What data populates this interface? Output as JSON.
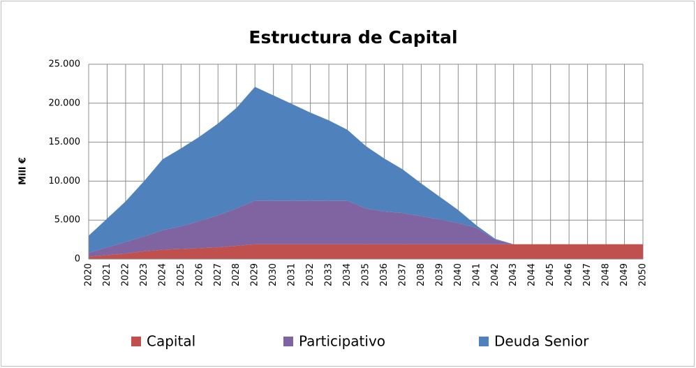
{
  "chart_data": {
    "type": "stacked_area",
    "title": "Estructura de Capital",
    "y_label": "Mill  €",
    "categories": [
      "2020",
      "2021",
      "2022",
      "2023",
      "2024",
      "2025",
      "2026",
      "2027",
      "2028",
      "2029",
      "2030",
      "2031",
      "2032",
      "2033",
      "2034",
      "2035",
      "2036",
      "2037",
      "2038",
      "2039",
      "2040",
      "2041",
      "2042",
      "2043",
      "2044",
      "2045",
      "2046",
      "2047",
      "2048",
      "2049",
      "2050"
    ],
    "series": [
      {
        "name": "Capital",
        "color": "#c0504d",
        "values": [
          300,
          500,
          700,
          1000,
          1200,
          1300,
          1400,
          1500,
          1700,
          1900,
          1900,
          1900,
          1900,
          1900,
          1900,
          1900,
          1900,
          1900,
          1900,
          1900,
          1900,
          1900,
          1900,
          1900,
          1900,
          1900,
          1900,
          1900,
          1900,
          1900,
          1900
        ]
      },
      {
        "name": "Participativo",
        "color": "#8064a2",
        "values": [
          500,
          1000,
          1500,
          1900,
          2500,
          2900,
          3500,
          4100,
          4800,
          5600,
          5600,
          5600,
          5600,
          5600,
          5600,
          4600,
          4200,
          4000,
          3600,
          3200,
          2700,
          2100,
          600,
          0,
          0,
          0,
          0,
          0,
          0,
          0,
          0
        ]
      },
      {
        "name": "Deuda Senior",
        "color": "#4f81bd",
        "values": [
          2200,
          3700,
          5200,
          7100,
          9100,
          10000,
          10800,
          11800,
          12900,
          14600,
          13500,
          12400,
          11300,
          10300,
          9100,
          8000,
          6800,
          5600,
          4200,
          2900,
          1700,
          300,
          100,
          0,
          0,
          0,
          0,
          0,
          0,
          0,
          0
        ]
      }
    ],
    "ylim": [
      0,
      25000
    ],
    "yticks": [
      0,
      {
        "value": 5000,
        "label": "5.000"
      },
      {
        "value": 10000,
        "label": "10.000"
      },
      {
        "value": 15000,
        "label": "15.000"
      },
      {
        "value": 20000,
        "label": "20.000"
      },
      {
        "value": 25000,
        "label": "25.000"
      }
    ],
    "grid": true,
    "legend": "bottom"
  }
}
